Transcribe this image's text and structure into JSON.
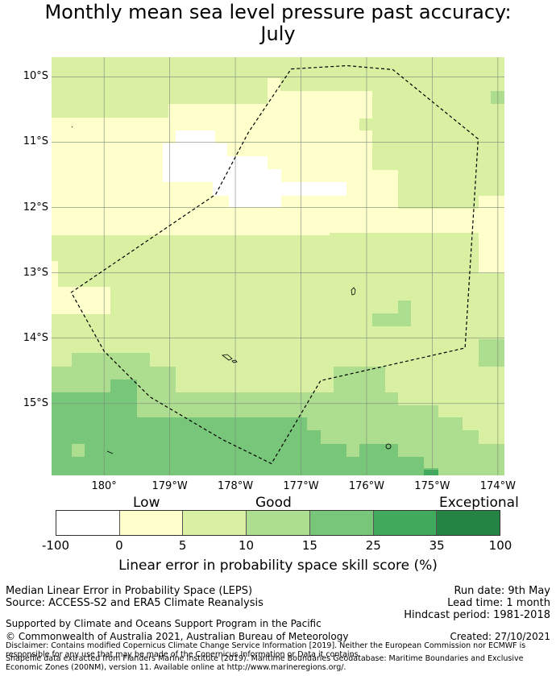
{
  "title_line1": "Monthly mean sea level pressure past accuracy:",
  "title_line2": "July",
  "map": {
    "lat_labels": [
      "10°S",
      "11°S",
      "12°S",
      "13°S",
      "14°S",
      "15°S"
    ],
    "lon_labels": [
      "180°",
      "179°W",
      "178°W",
      "177°W",
      "176°W",
      "175°W",
      "174°W"
    ],
    "lon_range": [
      -180.8,
      -173.9
    ],
    "lat_range": [
      -16.1,
      -9.7
    ],
    "region_outline_lonlat": [
      [
        -177.15,
        -9.88
      ],
      [
        -176.3,
        -9.83
      ],
      [
        -175.6,
        -9.89
      ],
      [
        -174.3,
        -10.95
      ],
      [
        -174.5,
        -14.15
      ],
      [
        -176.7,
        -14.65
      ],
      [
        -177.45,
        -15.92
      ],
      [
        -178.2,
        -15.55
      ],
      [
        -179.3,
        -14.9
      ],
      [
        -180.0,
        -14.2
      ],
      [
        -180.5,
        -13.3
      ],
      [
        -178.3,
        -11.8
      ],
      [
        -177.8,
        -10.85
      ]
    ]
  },
  "colorbar": {
    "category_labels": [
      "Low",
      "Good",
      "Exceptional"
    ],
    "ticks": [
      "-100",
      "0",
      "5",
      "10",
      "15",
      "25",
      "35",
      "100"
    ],
    "colors": [
      "#ffffff",
      "#ffffcc",
      "#d9f0a3",
      "#addd8e",
      "#78c679",
      "#41ab5d",
      "#238443"
    ],
    "title": "Linear error in probability space skill score (%)"
  },
  "info": {
    "left_line1": "Median Linear Error in Probability Space (LEPS)",
    "left_line2": "Source: ACCESS-S2 and ERA5 Climate Reanalysis",
    "right_line1": "Run date: 9th May",
    "right_line2": "Lead time: 1 month",
    "right_line3": "Hindcast period: 1981-2018",
    "supported": "Supported by Climate and Oceans Support Program in the Pacific",
    "copyright": "© Commonwealth of Australia 2021, Australian Bureau of Meteorology",
    "created": "Created: 27/10/2021",
    "disclaimer": "Disclaimer: Contains modified Copernicus Climate Change Service Information [2019]. Neither the European Commission nor ECMWF is responsible for any use that may be made of the Copernicus Information or Data it contains.",
    "shapefile": "Shapefile data extracted from Flanders Marine Institute (2019). Maritime Boundaries Geodatabase: Maritime Boundaries and Exclusive Economic Zones (200NM), version 11. Available online at http://www.marineregions.org/."
  }
}
